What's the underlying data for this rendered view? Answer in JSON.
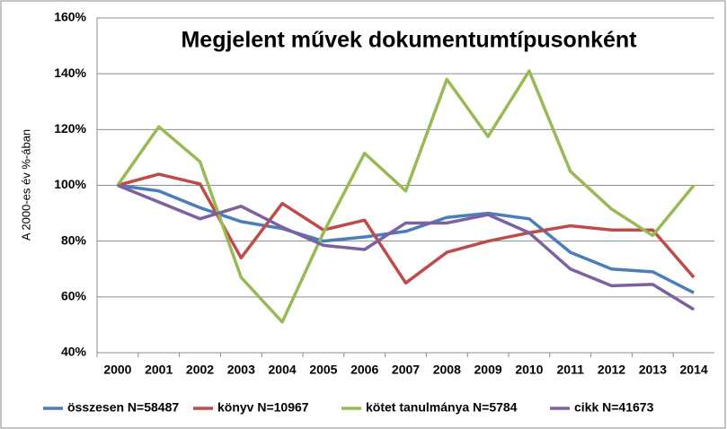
{
  "chart_data": {
    "type": "line",
    "title": "Megjelent művek dokumentumtípusonként",
    "y_label": "A 2000-es év %-ában",
    "categories": [
      "2000",
      "2001",
      "2002",
      "2003",
      "2004",
      "2005",
      "2006",
      "2007",
      "2008",
      "2009",
      "2010",
      "2011",
      "2012",
      "2013",
      "2014"
    ],
    "series": [
      {
        "name": "összesen N=58487",
        "color": "#4a7ebb",
        "values": [
          100,
          98,
          92,
          87,
          84.5,
          80,
          81.5,
          83.5,
          88.5,
          90,
          88,
          76,
          70,
          69,
          61.5
        ]
      },
      {
        "name": "könyv N=10967",
        "color": "#be4b48",
        "values": [
          100,
          104,
          100.5,
          74,
          93.5,
          84,
          87.5,
          65,
          76,
          80,
          83,
          85.5,
          84,
          84,
          67
        ]
      },
      {
        "name": "kötet tanulmánya N=5784",
        "color": "#98b954",
        "values": [
          100,
          121,
          108.5,
          67,
          51,
          83,
          111.5,
          98,
          138,
          117.5,
          141,
          105,
          91.5,
          82,
          100
        ]
      },
      {
        "name": "cikk N=41673",
        "color": "#7d60a0",
        "values": [
          100,
          94,
          88,
          92.5,
          85,
          78.5,
          77,
          86.5,
          86.5,
          89.5,
          83,
          70,
          64,
          64.5,
          55.5
        ]
      }
    ],
    "ylim": [
      40,
      160
    ],
    "yticks": [
      {
        "value": 40,
        "label": "40%"
      },
      {
        "value": 60,
        "label": "60%"
      },
      {
        "value": 80,
        "label": "80%"
      },
      {
        "value": 100,
        "label": "100%"
      },
      {
        "value": 120,
        "label": "120%"
      },
      {
        "value": 140,
        "label": "140%"
      },
      {
        "value": 160,
        "label": "160%"
      }
    ],
    "grid": true,
    "legend": "bottom"
  }
}
